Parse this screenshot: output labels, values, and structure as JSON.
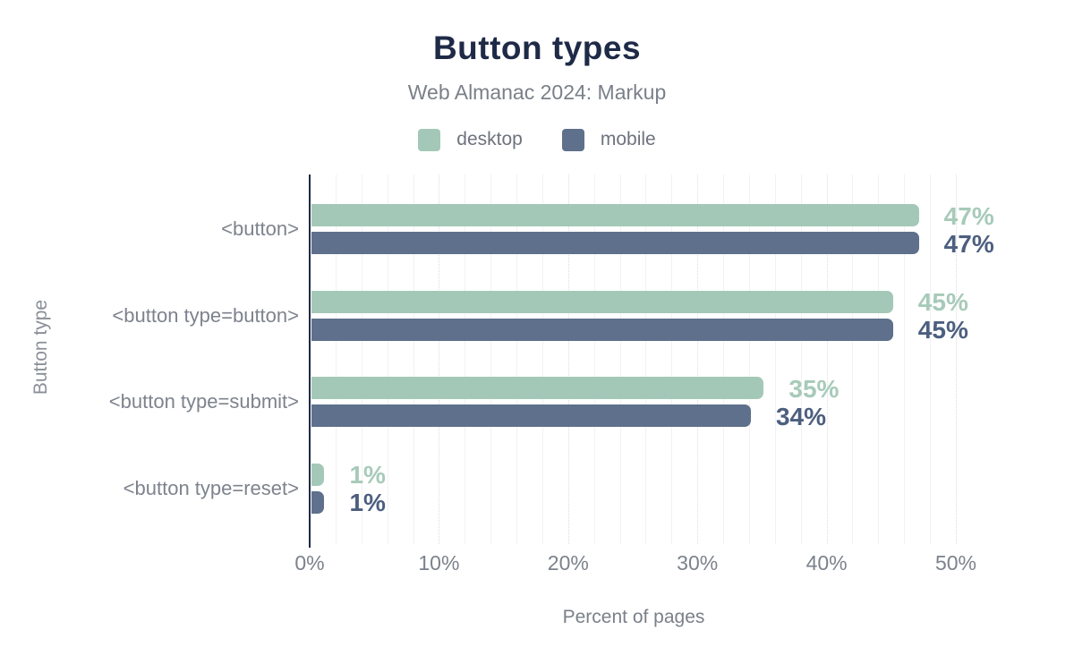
{
  "header": {
    "title": "Button types",
    "subtitle": "Web Almanac 2024: Markup"
  },
  "legend": [
    {
      "label": "desktop",
      "color": "#a4c8b7"
    },
    {
      "label": "mobile",
      "color": "#5e708b"
    }
  ],
  "chart_data": {
    "type": "bar",
    "orientation": "horizontal",
    "title": "Button types",
    "subtitle": "Web Almanac 2024: Markup",
    "xlabel": "Percent of pages",
    "ylabel": "Button type",
    "categories": [
      "<button>",
      "<button type=button>",
      "<button type=submit>",
      "<button type=reset>"
    ],
    "series": [
      {
        "name": "desktop",
        "color": "#a4c8b7",
        "label_color": "#a7cab9",
        "values": [
          47,
          45,
          35,
          1
        ],
        "labels": [
          "47%",
          "45%",
          "35%",
          "1%"
        ]
      },
      {
        "name": "mobile",
        "color": "#5e708b",
        "label_color": "#4d5f7f",
        "values": [
          47,
          45,
          34,
          1
        ],
        "labels": [
          "47%",
          "45%",
          "34%",
          "1%"
        ]
      }
    ],
    "value_suffix": "%",
    "xlim": [
      0,
      55
    ],
    "x_ticks": [
      0,
      10,
      20,
      30,
      40,
      50
    ],
    "x_tick_labels": [
      "0%",
      "10%",
      "20%",
      "30%",
      "40%",
      "50%"
    ],
    "x_minor_grid_step": 2,
    "grid": "vertical",
    "legend_position": "top",
    "axis_color": "#1e2a46"
  }
}
